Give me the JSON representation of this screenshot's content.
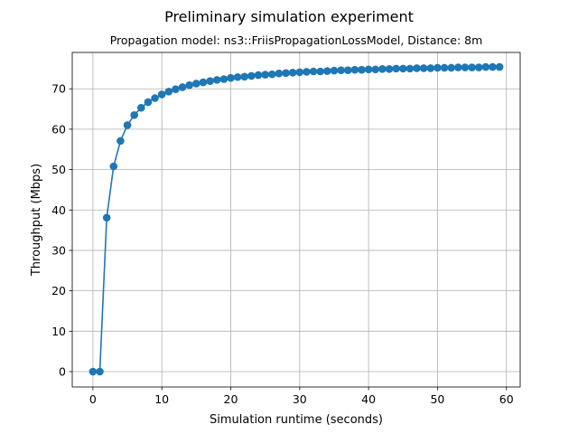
{
  "chart_data": {
    "type": "line",
    "title": "Preliminary simulation experiment",
    "subtitle": "Propagation model: ns3::FriisPropagationLossModel, Distance: 8m",
    "xlabel": "Simulation runtime (seconds)",
    "ylabel": "Throughput (Mbps)",
    "xlim": [
      -3,
      62
    ],
    "ylim": [
      -3.8,
      79
    ],
    "xticks": [
      0,
      10,
      20,
      30,
      40,
      50,
      60
    ],
    "yticks": [
      0,
      10,
      20,
      30,
      40,
      50,
      60,
      70
    ],
    "grid": true,
    "marker": "circle",
    "color": "#1f77b4",
    "x": [
      0,
      1,
      2,
      3,
      4,
      5,
      6,
      7,
      8,
      9,
      10,
      11,
      12,
      13,
      14,
      15,
      16,
      17,
      18,
      19,
      20,
      21,
      22,
      23,
      24,
      25,
      26,
      27,
      28,
      29,
      30,
      31,
      32,
      33,
      34,
      35,
      36,
      37,
      38,
      39,
      40,
      41,
      42,
      43,
      44,
      45,
      46,
      47,
      48,
      49,
      50,
      51,
      52,
      53,
      54,
      55,
      56,
      57,
      58,
      59
    ],
    "y": [
      0,
      0,
      38.1,
      50.8,
      57.1,
      61.0,
      63.5,
      65.3,
      66.7,
      67.7,
      68.6,
      69.3,
      69.9,
      70.4,
      70.9,
      71.3,
      71.6,
      71.9,
      72.2,
      72.4,
      72.7,
      72.9,
      73.0,
      73.2,
      73.4,
      73.5,
      73.6,
      73.8,
      73.9,
      74.0,
      74.1,
      74.2,
      74.3,
      74.3,
      74.4,
      74.5,
      74.6,
      74.6,
      74.7,
      74.7,
      74.8,
      74.8,
      74.9,
      74.9,
      75.0,
      75.0,
      75.0,
      75.1,
      75.1,
      75.1,
      75.2,
      75.2,
      75.2,
      75.3,
      75.3,
      75.3,
      75.3,
      75.4,
      75.4,
      75.4
    ]
  }
}
